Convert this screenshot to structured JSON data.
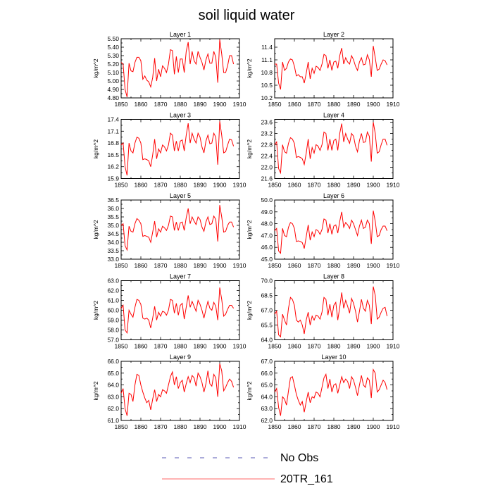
{
  "chart_data": {
    "type": "line",
    "title": "soil liquid water",
    "legend": {
      "placement": "bottom",
      "entries": [
        {
          "label": "No Obs",
          "style": "dashed",
          "color": "#5a5ab4"
        },
        {
          "label": "20TR_161",
          "style": "solid",
          "color": "#ff6666"
        }
      ]
    },
    "x_ticks": [
      1850,
      1860,
      1870,
      1880,
      1890,
      1900,
      1910
    ],
    "xlim": [
      1850,
      1910
    ],
    "x_start": 1850,
    "panels": [
      {
        "title": "Layer 1",
        "ylabel": "kg/m^2",
        "ylim": [
          4.8,
          5.5
        ],
        "yticks": [
          4.8,
          4.9,
          5.0,
          5.1,
          5.2,
          5.3,
          5.4,
          5.5
        ],
        "ytick_labels": [
          "4.80",
          "4.90",
          "5.00",
          "5.10",
          "5.20",
          "5.30",
          "5.40",
          "5.50"
        ],
        "values": [
          5.22,
          5.2,
          4.9,
          4.81,
          5.21,
          5.12,
          5.11,
          5.22,
          5.28,
          5.28,
          5.24,
          5.02,
          5.06,
          5.01,
          4.99,
          4.93,
          5.04,
          5.27,
          5.0,
          5.14,
          5.05,
          5.18,
          5.15,
          5.1,
          5.2,
          5.37,
          5.36,
          5.08,
          5.29,
          5.1,
          5.26,
          5.26,
          5.1,
          5.35,
          5.46,
          5.2,
          5.35,
          5.24,
          5.2,
          5.35,
          5.28,
          5.22,
          5.13,
          5.25,
          5.32,
          5.21,
          5.21,
          5.35,
          5.28,
          4.98,
          5.49,
          5.32,
          5.1,
          5.1,
          5.18,
          5.3,
          5.3,
          5.2
        ]
      },
      {
        "title": "Layer 2",
        "ylabel": "kg/m^2",
        "ylim": [
          10.2,
          11.6
        ],
        "yticks": [
          10.2,
          10.5,
          10.8,
          11.1,
          11.4
        ],
        "ytick_labels": [
          "10.2",
          "10.5",
          "10.8",
          "11.1",
          "11.4"
        ],
        "values": [
          11.0,
          11.0,
          10.55,
          10.4,
          11.05,
          10.85,
          10.9,
          11.05,
          11.12,
          11.1,
          10.95,
          10.72,
          10.75,
          10.7,
          10.7,
          10.55,
          10.78,
          11.05,
          10.65,
          10.9,
          10.78,
          10.95,
          10.92,
          10.85,
          11.0,
          11.23,
          11.2,
          10.9,
          11.1,
          10.85,
          11.05,
          11.07,
          10.9,
          11.2,
          11.38,
          11.0,
          11.15,
          11.05,
          11.0,
          11.2,
          11.1,
          10.95,
          10.85,
          11.05,
          11.15,
          10.98,
          11.0,
          11.22,
          11.1,
          10.7,
          11.43,
          11.15,
          10.85,
          10.88,
          11.0,
          11.1,
          11.08,
          10.98
        ]
      },
      {
        "title": "Layer 3",
        "ylabel": "kg/m^2",
        "ylim": [
          15.9,
          17.4
        ],
        "yticks": [
          15.9,
          16.2,
          16.5,
          16.8,
          17.1,
          17.4
        ],
        "ytick_labels": [
          "15.9",
          "16.2",
          "16.5",
          "16.8",
          "17.1",
          "17.4"
        ],
        "values": [
          16.75,
          16.8,
          16.2,
          15.98,
          16.8,
          16.6,
          16.55,
          16.8,
          16.95,
          16.92,
          16.8,
          16.38,
          16.4,
          16.38,
          16.35,
          16.2,
          16.5,
          16.9,
          16.4,
          16.65,
          16.55,
          16.75,
          16.7,
          16.6,
          16.75,
          17.05,
          17.0,
          16.6,
          16.85,
          16.6,
          16.85,
          16.88,
          16.6,
          17.0,
          17.3,
          16.8,
          17.05,
          16.9,
          16.8,
          17.05,
          16.95,
          16.7,
          16.55,
          16.85,
          17.0,
          16.78,
          16.8,
          17.05,
          16.95,
          16.25,
          17.35,
          17.0,
          16.55,
          16.58,
          16.75,
          16.9,
          16.88,
          16.72
        ]
      },
      {
        "title": "Layer 4",
        "ylabel": "kg/m^2",
        "ylim": [
          21.6,
          23.7
        ],
        "yticks": [
          21.6,
          22.0,
          22.4,
          22.8,
          23.2,
          23.6
        ],
        "ytick_labels": [
          "21.6",
          "22.0",
          "22.4",
          "22.8",
          "23.2",
          "23.6"
        ],
        "values": [
          22.8,
          22.9,
          21.95,
          21.8,
          22.8,
          22.55,
          22.5,
          22.85,
          23.05,
          23.0,
          22.85,
          22.35,
          22.38,
          22.35,
          22.3,
          22.1,
          22.5,
          23.0,
          22.3,
          22.7,
          22.5,
          22.8,
          22.75,
          22.6,
          22.8,
          23.25,
          23.2,
          22.6,
          23.0,
          22.6,
          22.95,
          23.0,
          22.6,
          23.2,
          23.55,
          22.9,
          23.2,
          23.0,
          22.85,
          23.2,
          23.1,
          22.75,
          22.55,
          22.95,
          23.2,
          22.88,
          22.9,
          23.25,
          23.1,
          22.2,
          23.6,
          23.2,
          22.5,
          22.55,
          22.8,
          23.0,
          23.0,
          22.78
        ]
      },
      {
        "title": "Layer 5",
        "ylabel": "kg/m^2",
        "ylim": [
          33.0,
          36.5
        ],
        "yticks": [
          33.0,
          33.5,
          34.0,
          34.5,
          35.0,
          35.5,
          36.0,
          36.5
        ],
        "ytick_labels": [
          "33.0",
          "33.5",
          "34.0",
          "34.5",
          "35.0",
          "35.5",
          "36.0",
          "36.5"
        ],
        "values": [
          35.0,
          35.1,
          33.8,
          33.55,
          34.95,
          34.65,
          34.6,
          35.1,
          35.4,
          35.3,
          35.1,
          34.35,
          34.4,
          34.35,
          34.3,
          34.0,
          34.6,
          35.25,
          34.3,
          34.8,
          34.6,
          34.95,
          34.85,
          34.7,
          35.0,
          35.55,
          35.5,
          34.7,
          35.2,
          34.7,
          35.15,
          35.2,
          34.7,
          35.45,
          36.0,
          35.1,
          35.5,
          35.25,
          35.05,
          35.5,
          35.35,
          34.9,
          34.65,
          35.2,
          35.5,
          35.05,
          35.1,
          35.55,
          35.35,
          34.05,
          36.2,
          35.5,
          34.6,
          34.65,
          35.0,
          35.2,
          35.2,
          34.9
        ]
      },
      {
        "title": "Layer 6",
        "ylabel": "kg/m^2",
        "ylim": [
          45.0,
          50.0
        ],
        "yticks": [
          45.0,
          46.0,
          47.0,
          48.0,
          49.0,
          50.0
        ],
        "ytick_labels": [
          "45.0",
          "46.0",
          "47.0",
          "48.0",
          "49.0",
          "50.0"
        ],
        "values": [
          47.4,
          47.6,
          45.7,
          45.5,
          47.6,
          47.0,
          46.9,
          47.7,
          48.1,
          48.0,
          47.6,
          46.5,
          46.55,
          46.5,
          46.4,
          45.9,
          46.9,
          47.9,
          46.6,
          47.3,
          46.9,
          47.5,
          47.4,
          47.1,
          47.5,
          48.4,
          48.3,
          47.2,
          48.0,
          47.1,
          47.8,
          47.9,
          47.2,
          48.2,
          49.0,
          47.7,
          48.1,
          47.9,
          47.6,
          48.3,
          48.0,
          47.5,
          47.0,
          47.8,
          48.3,
          47.6,
          47.7,
          48.3,
          48.0,
          46.3,
          49.1,
          48.2,
          46.9,
          47.0,
          47.5,
          47.8,
          47.8,
          47.4
        ]
      },
      {
        "title": "Layer 7",
        "ylabel": "kg/m^2",
        "ylim": [
          57.0,
          63.0
        ],
        "yticks": [
          57.0,
          58.0,
          59.0,
          60.0,
          61.0,
          62.0,
          63.0
        ],
        "ytick_labels": [
          "57.0",
          "58.0",
          "59.0",
          "60.0",
          "61.0",
          "62.0",
          "63.0"
        ],
        "values": [
          60.2,
          60.5,
          58.0,
          57.7,
          60.0,
          59.6,
          59.3,
          60.3,
          61.1,
          61.0,
          60.6,
          59.2,
          59.1,
          59.2,
          59.0,
          58.2,
          59.2,
          60.4,
          59.0,
          59.8,
          59.4,
          59.9,
          59.8,
          59.5,
          60.0,
          61.1,
          61.0,
          59.7,
          60.7,
          59.5,
          60.5,
          60.7,
          59.1,
          60.3,
          61.5,
          60.3,
          60.9,
          60.4,
          59.9,
          61.0,
          60.6,
          60.0,
          59.2,
          60.1,
          60.9,
          60.2,
          60.0,
          60.8,
          60.4,
          59.0,
          62.3,
          61.1,
          59.4,
          59.6,
          60.1,
          60.5,
          60.5,
          60.2
        ]
      },
      {
        "title": "Layer 8",
        "ylabel": "kg/m^2",
        "ylim": [
          64.0,
          70.0
        ],
        "yticks": [
          64.0,
          65.5,
          67.0,
          68.5,
          70.0
        ],
        "ytick_labels": [
          "64.0",
          "65.5",
          "67.0",
          "68.5",
          "70.0"
        ],
        "values": [
          66.6,
          66.9,
          64.5,
          64.3,
          66.6,
          66.0,
          65.5,
          67.2,
          68.3,
          68.1,
          67.5,
          66.0,
          65.8,
          66.0,
          65.5,
          64.6,
          66.0,
          66.8,
          65.5,
          66.4,
          66.0,
          66.5,
          66.4,
          66.1,
          66.8,
          68.3,
          68.1,
          66.5,
          67.6,
          66.3,
          67.5,
          67.8,
          66.0,
          67.3,
          68.8,
          67.2,
          68.0,
          67.4,
          66.7,
          68.2,
          67.7,
          66.9,
          65.8,
          66.9,
          68.1,
          67.2,
          66.9,
          68.0,
          67.5,
          65.6,
          69.4,
          68.5,
          66.1,
          66.3,
          66.8,
          67.2,
          67.3,
          66.4
        ]
      },
      {
        "title": "Layer 9",
        "ylabel": "kg/m^2",
        "ylim": [
          61.0,
          66.0
        ],
        "yticks": [
          61.0,
          62.0,
          63.0,
          64.0,
          65.0,
          66.0
        ],
        "ytick_labels": [
          "61.0",
          "62.0",
          "63.0",
          "64.0",
          "65.0",
          "66.0"
        ],
        "values": [
          63.3,
          63.7,
          62.0,
          61.4,
          63.3,
          63.2,
          62.6,
          64.0,
          64.9,
          64.8,
          64.0,
          63.4,
          62.9,
          62.5,
          62.7,
          61.9,
          62.8,
          63.6,
          62.6,
          63.2,
          63.0,
          63.6,
          63.5,
          63.3,
          64.0,
          64.7,
          65.1,
          64.0,
          64.7,
          63.7,
          64.2,
          64.4,
          63.4,
          64.1,
          64.7,
          64.2,
          64.8,
          64.6,
          63.9,
          65.0,
          64.7,
          64.2,
          63.4,
          64.1,
          65.2,
          64.1,
          63.9,
          64.9,
          64.6,
          63.0,
          65.8,
          65.2,
          63.5,
          63.8,
          64.2,
          64.5,
          64.3,
          63.8
        ]
      },
      {
        "title": "Layer 10",
        "ylabel": "kg/m^2",
        "ylim": [
          62.0,
          67.0
        ],
        "yticks": [
          62.0,
          63.0,
          64.0,
          65.0,
          66.0,
          67.0
        ],
        "ytick_labels": [
          "62.0",
          "63.0",
          "64.0",
          "65.0",
          "66.0",
          "67.0"
        ],
        "values": [
          64.4,
          64.7,
          63.1,
          62.4,
          64.0,
          63.8,
          63.3,
          64.5,
          65.6,
          65.7,
          65.0,
          64.2,
          63.7,
          63.3,
          63.6,
          62.7,
          63.6,
          64.4,
          63.5,
          64.0,
          63.9,
          64.4,
          64.3,
          64.0,
          64.8,
          65.6,
          65.9,
          64.7,
          65.5,
          64.4,
          65.0,
          65.1,
          64.3,
          65.0,
          65.7,
          65.2,
          65.5,
          65.3,
          64.7,
          65.7,
          65.4,
          64.8,
          64.1,
          65.0,
          65.8,
          65.0,
          64.8,
          65.6,
          65.4,
          63.9,
          66.3,
          66.0,
          64.4,
          64.6,
          65.0,
          65.4,
          65.2,
          64.6
        ]
      }
    ]
  }
}
